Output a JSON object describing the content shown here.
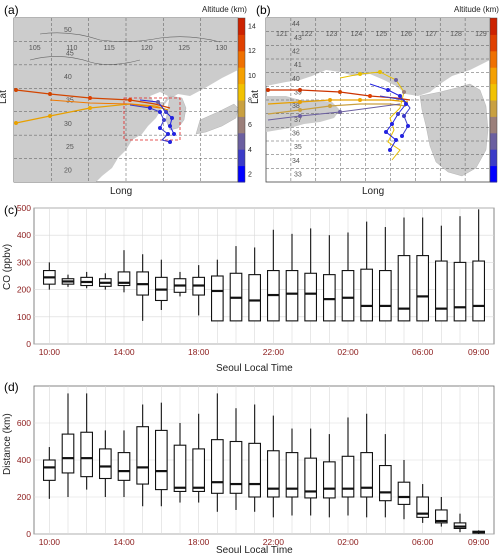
{
  "panels": {
    "a": "(a)",
    "b": "(b)",
    "c": "(c)",
    "d": "(d)"
  },
  "colors": {
    "land": "#cccccc",
    "sea": "#ffffff",
    "box_stroke": "#333333",
    "grid": "#d9d9d9",
    "tick_red": "#8b1a1a",
    "colorbar": [
      "#0000ff",
      "#3b3bc8",
      "#6b5fa0",
      "#9b7f7a",
      "#c9a040",
      "#f2c200",
      "#f5a000",
      "#ef7000",
      "#e04000",
      "#cc2200"
    ]
  },
  "maps": [
    {
      "id": "a",
      "xlabel": "Long",
      "ylabel": "Lat",
      "colorbar_title": "Altitude (km)",
      "colorbar_ticks": [
        "14",
        "12",
        "10",
        "8",
        "6",
        "4",
        "2"
      ],
      "lon_labels": [
        "105",
        "110",
        "115",
        "120",
        "125",
        "130"
      ],
      "lat_labels": [
        "50",
        "45",
        "40",
        "35",
        "30",
        "25",
        "20"
      ]
    },
    {
      "id": "b",
      "xlabel": "Long",
      "ylabel": "Lat",
      "colorbar_title": "Altitude (km)",
      "colorbar_ticks": [
        "14",
        "12",
        "10",
        "8",
        "6",
        "4",
        "2"
      ],
      "lon_labels": [
        "121",
        "122",
        "123",
        "124",
        "125",
        "126",
        "127",
        "128",
        "129"
      ],
      "lat_labels": [
        "44",
        "43",
        "42",
        "41",
        "40",
        "39",
        "38",
        "37",
        "36",
        "35",
        "34",
        "33"
      ]
    }
  ],
  "chart_data": [
    {
      "type": "box",
      "panel": "c",
      "xlabel": "Seoul Local Time",
      "ylabel": "CO (ppbv)",
      "ylim": [
        0,
        500
      ],
      "yticks": [
        0,
        100,
        200,
        300,
        400,
        500
      ],
      "xtick_labels": [
        "10:00",
        "14:00",
        "18:00",
        "22:00",
        "02:00",
        "06:00",
        "09:00"
      ],
      "xtick_positions": [
        0,
        4,
        8,
        12,
        16,
        20,
        23
      ],
      "grid": true,
      "boxes": [
        {
          "min": 200,
          "q1": 220,
          "median": 245,
          "q3": 270,
          "max": 300
        },
        {
          "min": 210,
          "q1": 220,
          "median": 230,
          "q3": 240,
          "max": 255
        },
        {
          "min": 205,
          "q1": 215,
          "median": 228,
          "q3": 245,
          "max": 265
        },
        {
          "min": 200,
          "q1": 212,
          "median": 225,
          "q3": 240,
          "max": 260
        },
        {
          "min": 190,
          "q1": 215,
          "median": 225,
          "q3": 265,
          "max": 345
        },
        {
          "min": 85,
          "q1": 180,
          "median": 220,
          "q3": 265,
          "max": 330
        },
        {
          "min": 125,
          "q1": 160,
          "median": 200,
          "q3": 245,
          "max": 310
        },
        {
          "min": 175,
          "q1": 190,
          "median": 215,
          "q3": 240,
          "max": 265
        },
        {
          "min": 105,
          "q1": 180,
          "median": 215,
          "q3": 245,
          "max": 290
        },
        {
          "min": 85,
          "q1": 85,
          "median": 195,
          "q3": 250,
          "max": 310
        },
        {
          "min": 85,
          "q1": 85,
          "median": 170,
          "q3": 260,
          "max": 360
        },
        {
          "min": 85,
          "q1": 85,
          "median": 160,
          "q3": 255,
          "max": 355
        },
        {
          "min": 85,
          "q1": 85,
          "median": 180,
          "q3": 270,
          "max": 420
        },
        {
          "min": 85,
          "q1": 85,
          "median": 185,
          "q3": 270,
          "max": 405
        },
        {
          "min": 85,
          "q1": 85,
          "median": 185,
          "q3": 260,
          "max": 425
        },
        {
          "min": 85,
          "q1": 85,
          "median": 165,
          "q3": 255,
          "max": 400
        },
        {
          "min": 85,
          "q1": 85,
          "median": 170,
          "q3": 270,
          "max": 410
        },
        {
          "min": 85,
          "q1": 85,
          "median": 140,
          "q3": 275,
          "max": 450
        },
        {
          "min": 85,
          "q1": 85,
          "median": 140,
          "q3": 270,
          "max": 430
        },
        {
          "min": 85,
          "q1": 85,
          "median": 130,
          "q3": 325,
          "max": 465
        },
        {
          "min": 85,
          "q1": 85,
          "median": 175,
          "q3": 325,
          "max": 465
        },
        {
          "min": 85,
          "q1": 85,
          "median": 130,
          "q3": 305,
          "max": 435
        },
        {
          "min": 85,
          "q1": 85,
          "median": 135,
          "q3": 300,
          "max": 470
        },
        {
          "min": 85,
          "q1": 85,
          "median": 140,
          "q3": 305,
          "max": 495
        }
      ]
    },
    {
      "type": "box",
      "panel": "d",
      "xlabel": "Seoul Local Time",
      "ylabel": "Distance (km)",
      "ylim": [
        0,
        800
      ],
      "yticks": [
        0,
        200,
        400,
        600
      ],
      "xtick_labels": [
        "10:00",
        "14:00",
        "18:00",
        "22:00",
        "02:00",
        "06:00",
        "09:00"
      ],
      "xtick_positions": [
        0,
        4,
        8,
        12,
        16,
        20,
        23
      ],
      "grid": true,
      "boxes": [
        {
          "min": 190,
          "q1": 290,
          "median": 360,
          "q3": 400,
          "max": 470
        },
        {
          "min": 200,
          "q1": 330,
          "median": 410,
          "q3": 540,
          "max": 760
        },
        {
          "min": 240,
          "q1": 310,
          "median": 410,
          "q3": 550,
          "max": 760
        },
        {
          "min": 200,
          "q1": 300,
          "median": 365,
          "q3": 460,
          "max": 560
        },
        {
          "min": 200,
          "q1": 290,
          "median": 340,
          "q3": 440,
          "max": 560
        },
        {
          "min": 150,
          "q1": 270,
          "median": 360,
          "q3": 580,
          "max": 700
        },
        {
          "min": 150,
          "q1": 240,
          "median": 340,
          "q3": 560,
          "max": 710
        },
        {
          "min": 170,
          "q1": 230,
          "median": 250,
          "q3": 480,
          "max": 600
        },
        {
          "min": 170,
          "q1": 230,
          "median": 250,
          "q3": 460,
          "max": 650
        },
        {
          "min": 120,
          "q1": 220,
          "median": 280,
          "q3": 510,
          "max": 760
        },
        {
          "min": 130,
          "q1": 220,
          "median": 270,
          "q3": 500,
          "max": 680
        },
        {
          "min": 120,
          "q1": 200,
          "median": 270,
          "q3": 490,
          "max": 700
        },
        {
          "min": 90,
          "q1": 200,
          "median": 245,
          "q3": 450,
          "max": 640
        },
        {
          "min": 100,
          "q1": 200,
          "median": 245,
          "q3": 440,
          "max": 570
        },
        {
          "min": 100,
          "q1": 195,
          "median": 230,
          "q3": 410,
          "max": 570
        },
        {
          "min": 90,
          "q1": 195,
          "median": 245,
          "q3": 390,
          "max": 540
        },
        {
          "min": 100,
          "q1": 200,
          "median": 245,
          "q3": 420,
          "max": 630
        },
        {
          "min": 90,
          "q1": 200,
          "median": 250,
          "q3": 440,
          "max": 650
        },
        {
          "min": 90,
          "q1": 180,
          "median": 225,
          "q3": 370,
          "max": 540
        },
        {
          "min": 80,
          "q1": 160,
          "median": 200,
          "q3": 280,
          "max": 400
        },
        {
          "min": 60,
          "q1": 90,
          "median": 110,
          "q3": 200,
          "max": 270
        },
        {
          "min": 40,
          "q1": 60,
          "median": 70,
          "q3": 130,
          "max": 200
        },
        {
          "min": 10,
          "q1": 30,
          "median": 40,
          "q3": 60,
          "max": 110
        },
        {
          "min": 0,
          "q1": 5,
          "median": 10,
          "q3": 15,
          "max": 20
        }
      ]
    }
  ]
}
